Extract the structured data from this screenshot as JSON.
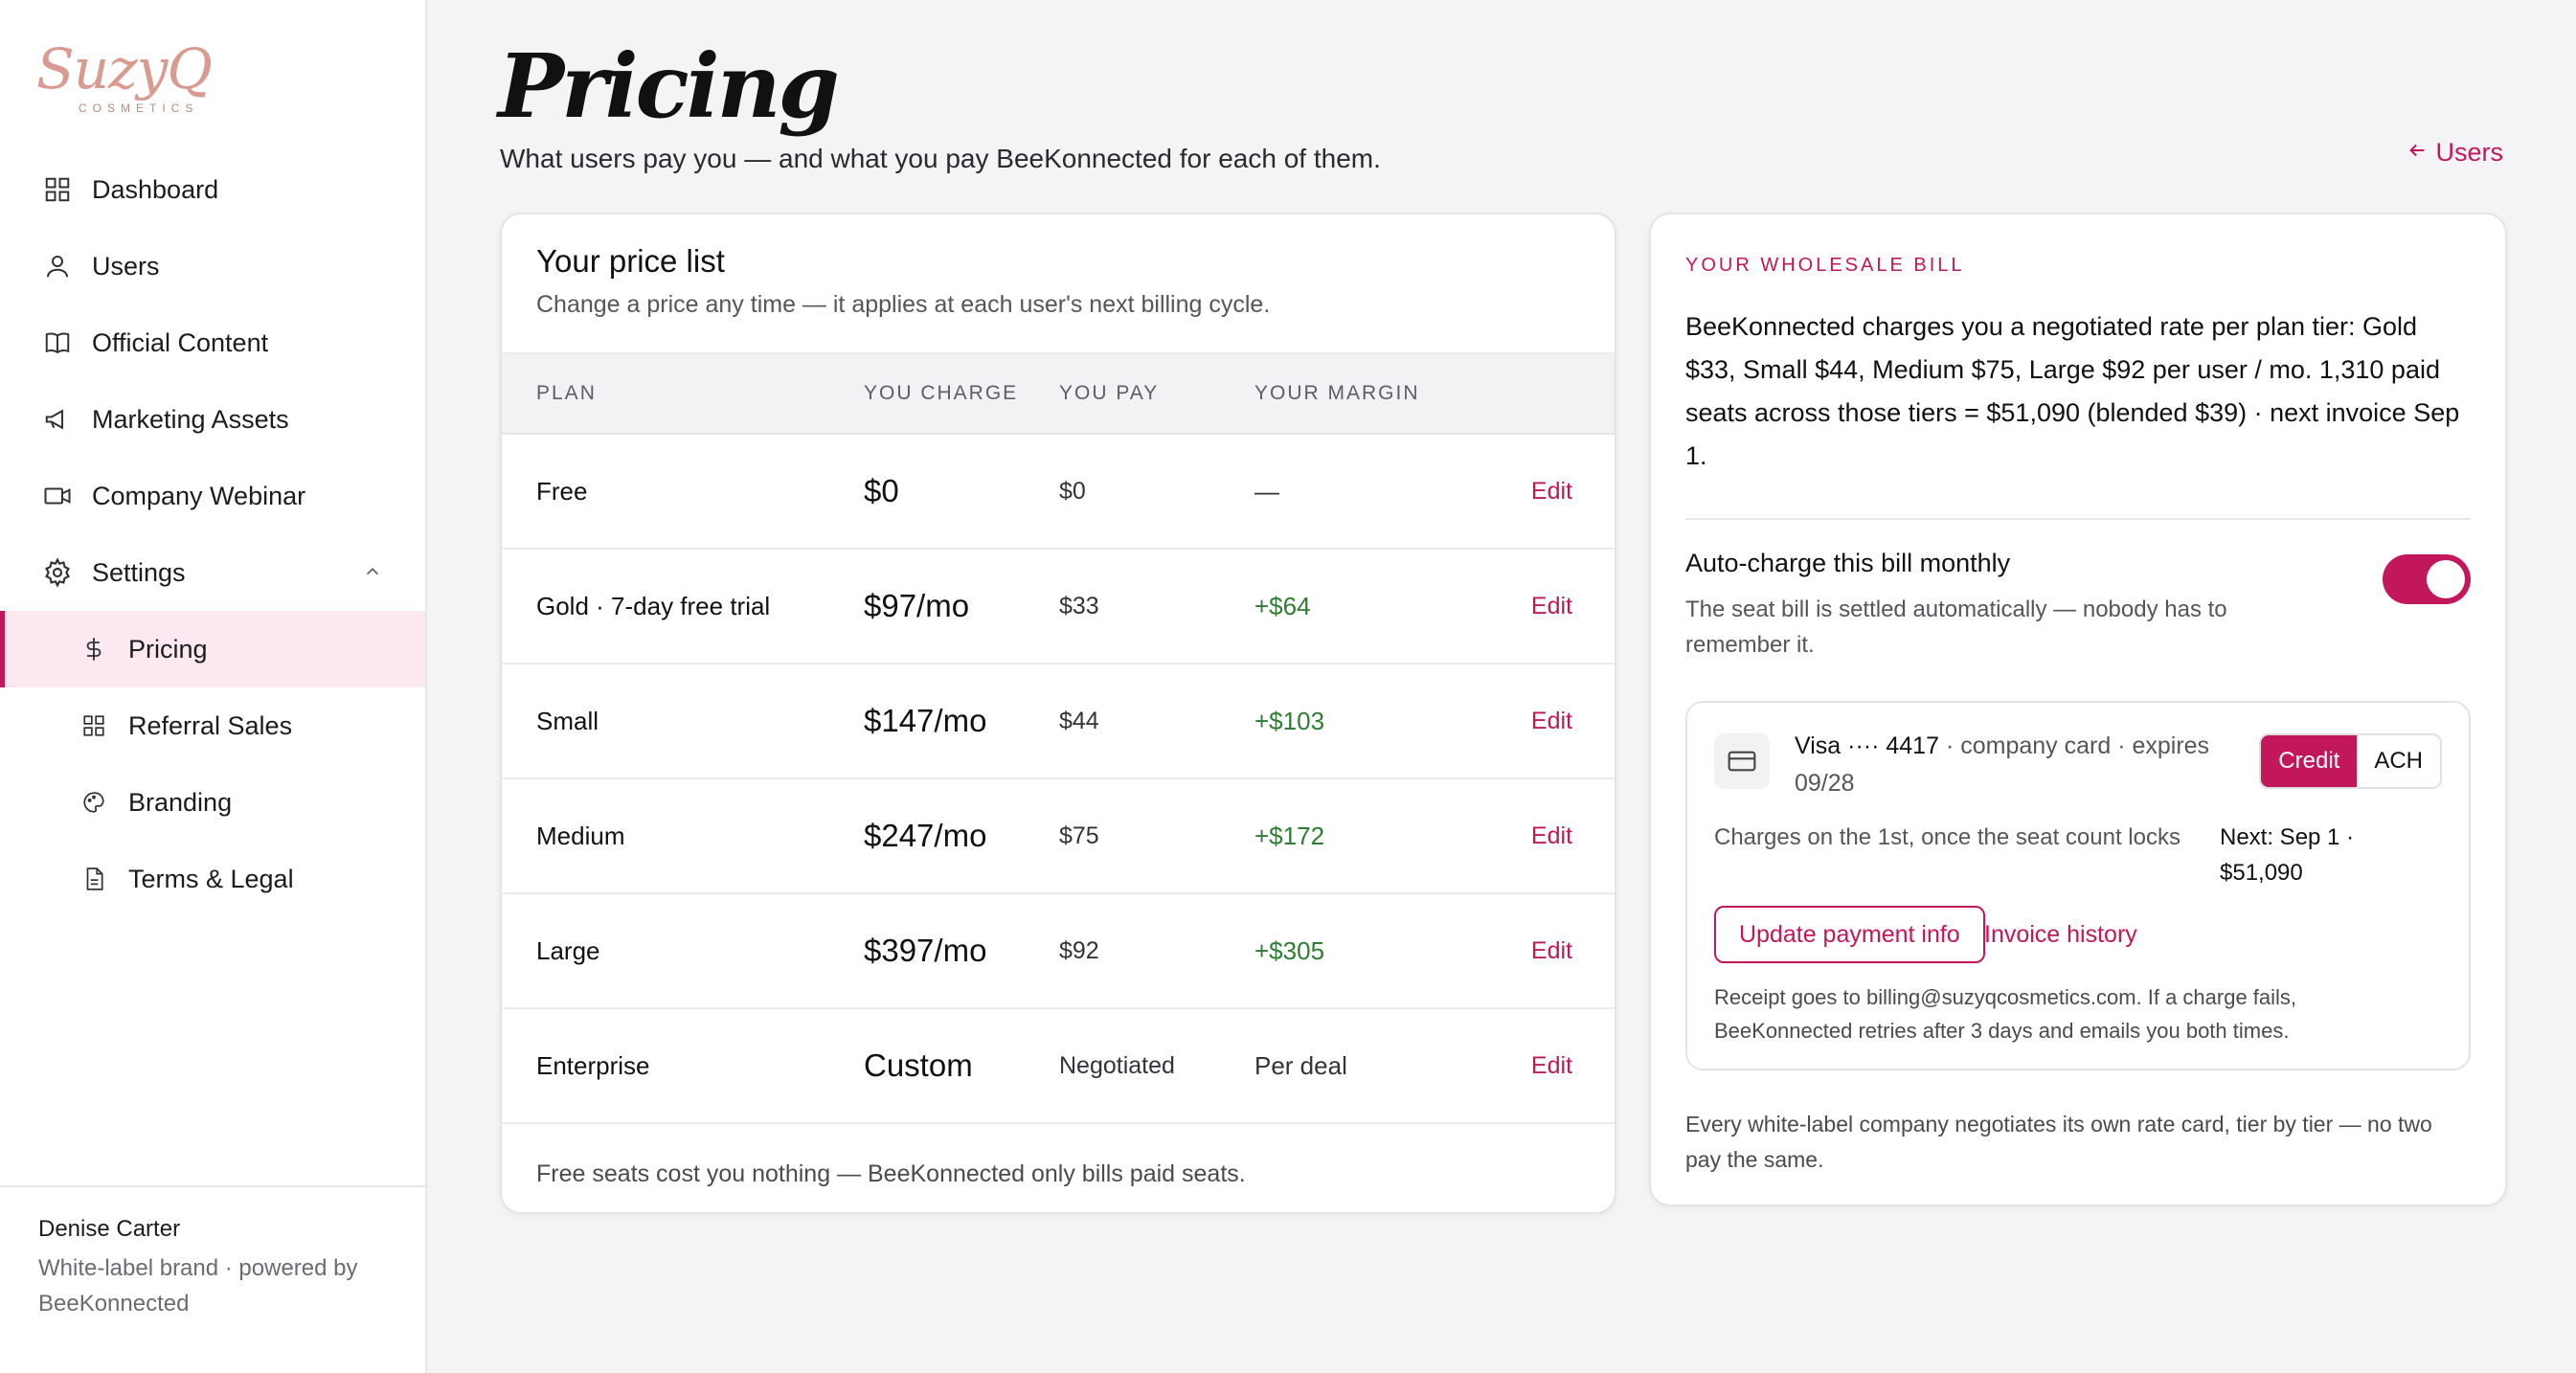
{
  "brand": {
    "logo_text": "SuzyQ",
    "logo_sub": "COSMETICS"
  },
  "sidebar": {
    "items": [
      {
        "label": "Dashboard",
        "icon": "grid-icon"
      },
      {
        "label": "Users",
        "icon": "user-icon"
      },
      {
        "label": "Official Content",
        "icon": "book-icon"
      },
      {
        "label": "Marketing Assets",
        "icon": "megaphone-icon"
      },
      {
        "label": "Company Webinar",
        "icon": "video-icon"
      },
      {
        "label": "Settings",
        "icon": "gear-icon"
      }
    ],
    "settings_items": [
      {
        "label": "Pricing",
        "icon": "dollar-icon",
        "active": true
      },
      {
        "label": "Referral Sales",
        "icon": "grid-icon"
      },
      {
        "label": "Branding",
        "icon": "palette-icon"
      },
      {
        "label": "Terms & Legal",
        "icon": "document-icon"
      }
    ],
    "footer": {
      "name": "Denise Carter",
      "brand_line": "White-label brand · powered by BeeKonnected"
    }
  },
  "header": {
    "title": "Pricing",
    "subtitle": "What users pay you — and what you pay BeeKonnected for each of them.",
    "back_link": "Users"
  },
  "price_list": {
    "title": "Your price list",
    "subtitle": "Change a price any time — it applies at each user's next billing cycle.",
    "columns": [
      "PLAN",
      "YOU CHARGE",
      "YOU PAY",
      "YOUR MARGIN"
    ],
    "rows": [
      {
        "plan": "Free",
        "charge": "$0",
        "pay": "$0",
        "margin": "—",
        "edit": "Edit"
      },
      {
        "plan": "Gold · 7-day free trial",
        "charge": "$97/mo",
        "pay": "$33",
        "margin": "+$64",
        "edit": "Edit"
      },
      {
        "plan": "Small",
        "charge": "$147/mo",
        "pay": "$44",
        "margin": "+$103",
        "edit": "Edit"
      },
      {
        "plan": "Medium",
        "charge": "$247/mo",
        "pay": "$75",
        "margin": "+$172",
        "edit": "Edit"
      },
      {
        "plan": "Large",
        "charge": "$397/mo",
        "pay": "$92",
        "margin": "+$305",
        "edit": "Edit"
      },
      {
        "plan": "Enterprise",
        "charge": "Custom",
        "pay": "Negotiated",
        "margin": "Per deal",
        "edit": "Edit"
      }
    ],
    "footer": "Free seats cost you nothing — BeeKonnected only bills paid seats."
  },
  "wholesale": {
    "eyebrow": "YOUR WHOLESALE BILL",
    "description": "BeeKonnected charges you a negotiated rate per plan tier: Gold $33, Small $44, Medium $75, Large $92 per user / mo. 1,310 paid seats across those tiers = $51,090 (blended $39) · next invoice Sep 1.",
    "auto_charge": {
      "title": "Auto-charge this bill monthly",
      "subtitle": "The seat bill is settled automatically — nobody has to remember it.",
      "enabled": true
    },
    "payment": {
      "card_brand": "Visa ···· 4417",
      "card_detail": "· company card · expires 09/28",
      "methods": [
        "Credit",
        "ACH"
      ],
      "selected_method": "Credit",
      "charge_note": "Charges on the 1st, once the seat count locks",
      "next_charge": "Next: Sep 1 · $51,090",
      "update_button": "Update payment info",
      "history_link": "Invoice history",
      "receipt_note": "Receipt goes to billing@suzyqcosmetics.com. If a charge fails, BeeKonnected retries after 3 days and emails you both times."
    },
    "footer": "Every white-label company negotiates its own rate card, tier by tier — no two pay the same."
  },
  "colors": {
    "accent": "#c2185b",
    "positive": "#2e7d32",
    "logo": "#d99a8f"
  }
}
